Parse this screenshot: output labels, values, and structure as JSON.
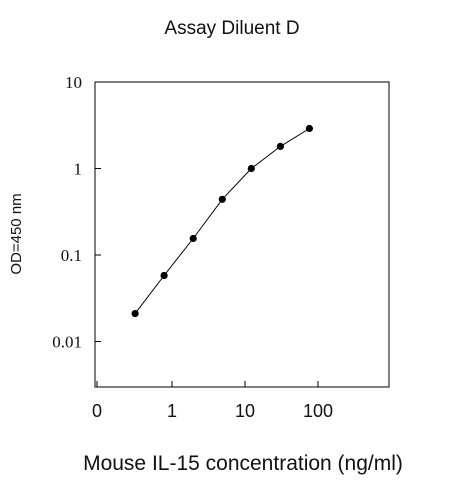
{
  "chart_data": {
    "type": "line",
    "title": "Assay Diluent D",
    "xlabel": "Mouse IL-15 concentration (ng/ml)",
    "ylabel": "OD=450 nm",
    "x_scale": "log",
    "y_scale": "log",
    "x_ticks": [
      "0",
      "1",
      "10",
      "100"
    ],
    "y_ticks": [
      "10",
      "1",
      "0.1",
      "0.01"
    ],
    "ylim": [
      0.001,
      10
    ],
    "grid": false,
    "series": [
      {
        "x": [
          0.3125,
          0.78,
          1.95,
          4.88,
          12.2,
          30.5,
          76.3
        ],
        "y": [
          0.021,
          0.058,
          0.155,
          0.44,
          1.0,
          1.8,
          2.9
        ]
      }
    ]
  }
}
